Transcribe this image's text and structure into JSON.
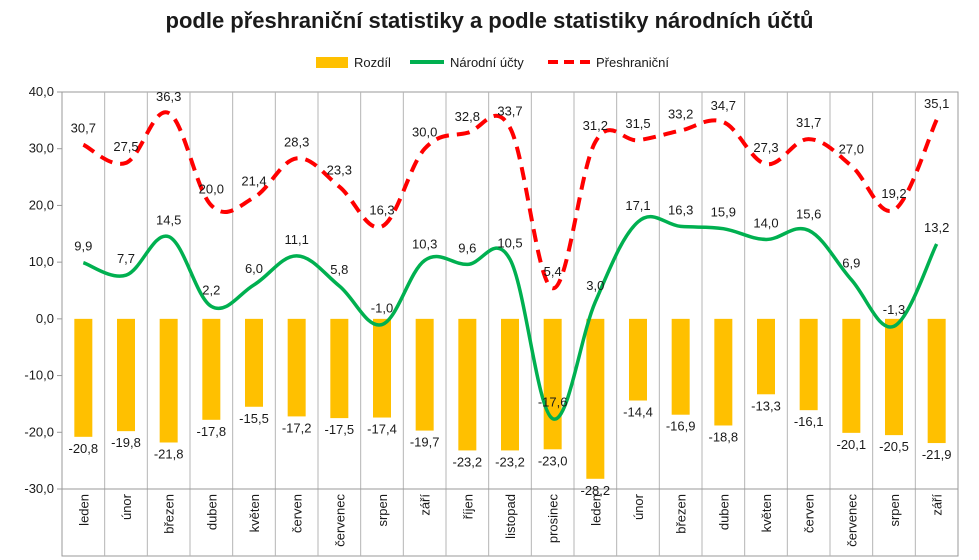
{
  "chart_data": {
    "type": "bar",
    "title": "podle přeshraniční statistiky a podle statistiky národních účtů",
    "categories": [
      "leden",
      "únor",
      "březen",
      "duben",
      "květen",
      "červen",
      "červenec",
      "srpen",
      "září",
      "říjen",
      "listopad",
      "prosinec",
      "leden",
      "únor",
      "březen",
      "duben",
      "květen",
      "červen",
      "červenec",
      "srpen",
      "září"
    ],
    "series": [
      {
        "name": "Rozdíl",
        "type": "bar",
        "color": "#FFC000",
        "values": [
          -20.8,
          -19.8,
          -21.8,
          -17.8,
          -15.5,
          -17.2,
          -17.5,
          -17.4,
          -19.7,
          -23.2,
          -23.2,
          -23.0,
          -28.2,
          -14.4,
          -16.9,
          -18.8,
          -13.3,
          -16.1,
          -20.1,
          -20.5,
          -21.9
        ]
      },
      {
        "name": "Národní účty",
        "type": "line",
        "color": "#00B050",
        "values": [
          9.9,
          7.7,
          14.5,
          2.2,
          6.0,
          11.1,
          5.8,
          -1.0,
          10.3,
          9.6,
          10.5,
          -17.6,
          3.0,
          17.1,
          16.3,
          15.9,
          14.0,
          15.6,
          6.9,
          -1.3,
          13.2
        ]
      },
      {
        "name": "Přeshraniční",
        "type": "dashed-line",
        "color": "#FF0000",
        "values": [
          30.7,
          27.5,
          36.3,
          20.0,
          21.4,
          28.3,
          23.3,
          16.3,
          30.0,
          32.8,
          33.7,
          5.4,
          31.2,
          31.5,
          33.2,
          34.7,
          27.3,
          31.7,
          27.0,
          19.2,
          35.1
        ]
      }
    ],
    "yticks": [
      "40,0",
      "30,0",
      "20,0",
      "10,0",
      "0,0",
      "-10,0",
      "-20,0",
      "-30,0"
    ],
    "ylim": [
      -30,
      40
    ],
    "grid": "vertical category separators",
    "legend": "top-center"
  }
}
